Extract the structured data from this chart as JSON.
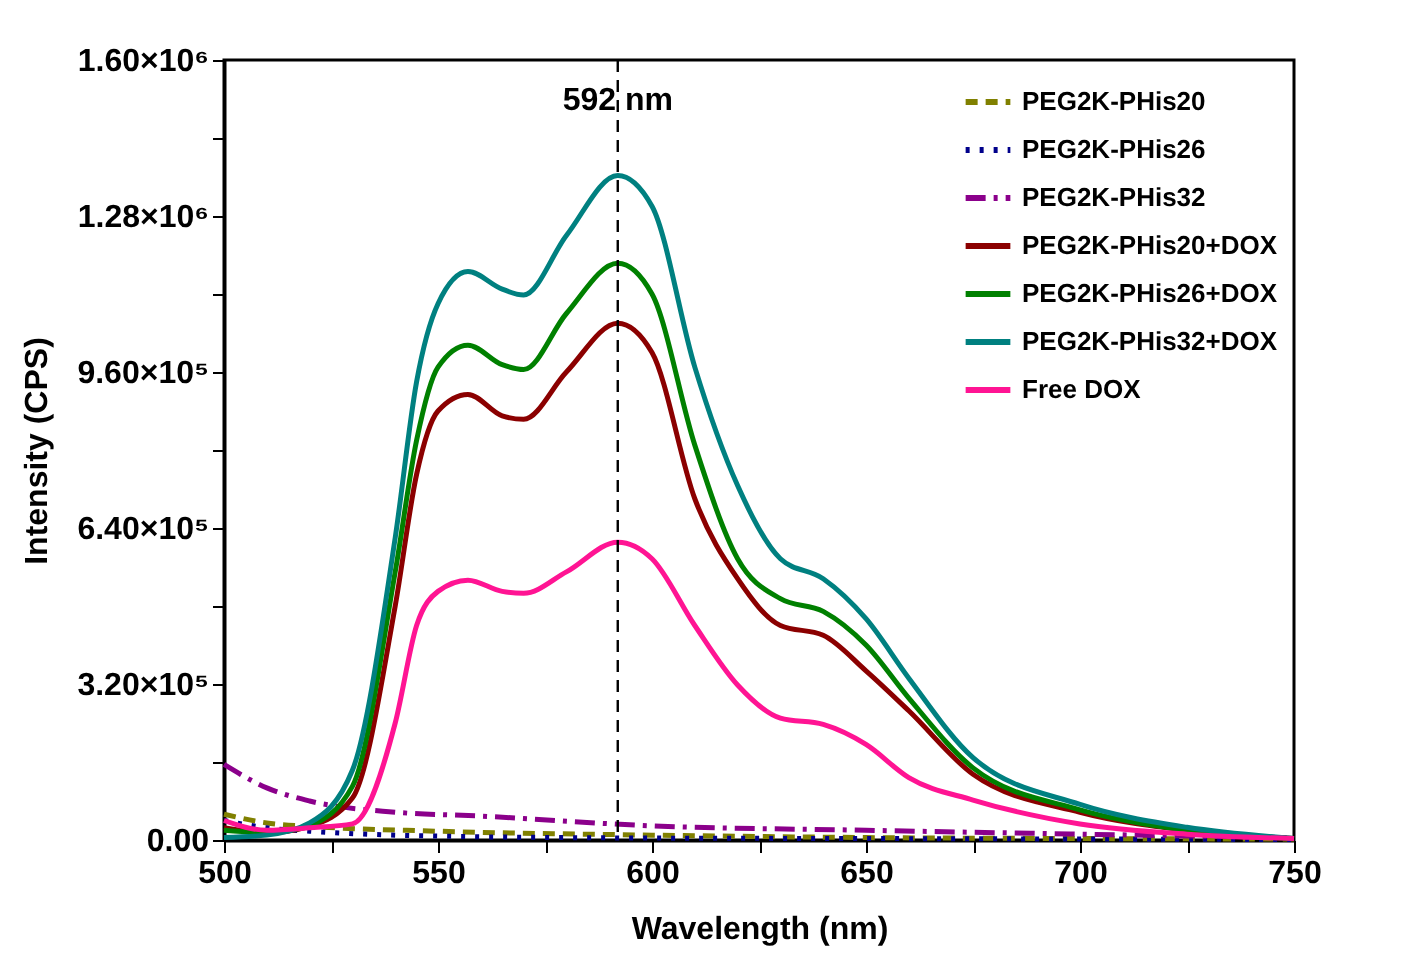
{
  "chart_data": {
    "type": "line",
    "xlabel": "Wavelength (nm)",
    "ylabel": "Intensity (CPS)",
    "xlim": [
      500,
      750
    ],
    "xticks": [
      500,
      {
        "value": 525,
        "label": null
      },
      550,
      {
        "value": 575,
        "label": null
      },
      600,
      {
        "value": 625,
        "label": null
      },
      650,
      {
        "value": 675,
        "label": null
      },
      700,
      {
        "value": 725,
        "label": null
      },
      750
    ],
    "ylim": [
      0,
      1600000
    ],
    "yticks": [
      {
        "value": 0,
        "label": "0.00"
      },
      {
        "value": 160000,
        "label": null
      },
      {
        "value": 320000,
        "label": "3.20×10⁵"
      },
      {
        "value": 480000,
        "label": null
      },
      {
        "value": 640000,
        "label": "6.40×10⁵"
      },
      {
        "value": 800000,
        "label": null
      },
      {
        "value": 960000,
        "label": "9.60×10⁵"
      },
      {
        "value": 1120000,
        "label": null
      },
      {
        "value": 1280000,
        "label": "1.28×10⁶"
      },
      {
        "value": 1440000,
        "label": null
      },
      {
        "value": 1600000,
        "label": "1.60×10⁶"
      }
    ],
    "grid": false,
    "legend": "top right",
    "marker": "none",
    "x": [
      500,
      510,
      520,
      530,
      540,
      545,
      550,
      557,
      565,
      570,
      580,
      592,
      600,
      610,
      620,
      630,
      640,
      650,
      660,
      675,
      700,
      725,
      750
    ],
    "series": [
      {
        "name": "PEG2K-PHis20",
        "color": "#808000",
        "line_style": "dashed",
        "x": [
          500,
          510,
          520,
          550,
          600,
          650,
          700,
          750
        ],
        "values": [
          53000,
          35000,
          28000,
          18000,
          10000,
          5000,
          3000,
          2000
        ]
      },
      {
        "name": "PEG2K-PHis26",
        "color": "#00008b",
        "line_style": "dotted",
        "x": [
          500,
          510,
          520,
          550,
          600,
          650,
          700,
          750
        ],
        "values": [
          40000,
          25000,
          18000,
          8000,
          4000,
          3000,
          2000,
          1000
        ]
      },
      {
        "name": "PEG2K-PHis32",
        "color": "#8b008b",
        "line_style": "dashdot",
        "x": [
          500,
          510,
          520,
          540,
          560,
          600,
          650,
          700,
          750
        ],
        "values": [
          155000,
          107000,
          80000,
          57000,
          49000,
          29000,
          20000,
          12000,
          5000
        ]
      },
      {
        "name": "PEG2K-PHis20+DOX",
        "color": "#8b0000",
        "line_style": "solid",
        "values": [
          25000,
          15000,
          28000,
          86000,
          480000,
          750000,
          880000,
          914000,
          870000,
          863000,
          960000,
          1060000,
          1000000,
          700000,
          536000,
          440000,
          420000,
          347000,
          265000,
          135000,
          57000,
          20000,
          3000
        ]
      },
      {
        "name": "PEG2K-PHis26+DOX",
        "color": "#008000",
        "line_style": "solid",
        "values": [
          20000,
          15000,
          30000,
          110000,
          550000,
          820000,
          970000,
          1015000,
          975000,
          965000,
          1080000,
          1183000,
          1120000,
          810000,
          577000,
          495000,
          469000,
          400000,
          291000,
          148000,
          62000,
          20000,
          3000
        ]
      },
      {
        "name": "PEG2K-PHis32+DOX",
        "color": "#008080",
        "line_style": "solid",
        "values": [
          5000,
          10000,
          35000,
          143000,
          620000,
          940000,
          1100000,
          1166000,
          1130000,
          1118000,
          1240000,
          1363000,
          1300000,
          970000,
          727000,
          577000,
          536000,
          454000,
          332000,
          169000,
          73000,
          26000,
          3000
        ]
      },
      {
        "name": "Free DOX",
        "color": "#ff1493",
        "line_style": "solid",
        "values": [
          40000,
          20000,
          25000,
          33000,
          240000,
          440000,
          510000,
          533000,
          510000,
          506000,
          550000,
          611000,
          577000,
          440000,
          318000,
          250000,
          237000,
          196000,
          128000,
          82000,
          33000,
          12000,
          3000
        ]
      }
    ],
    "ref_lines": [
      {
        "axis": "x",
        "value": 592,
        "label": "592 nm",
        "color": "#000000",
        "line_style": "dashed"
      }
    ]
  }
}
